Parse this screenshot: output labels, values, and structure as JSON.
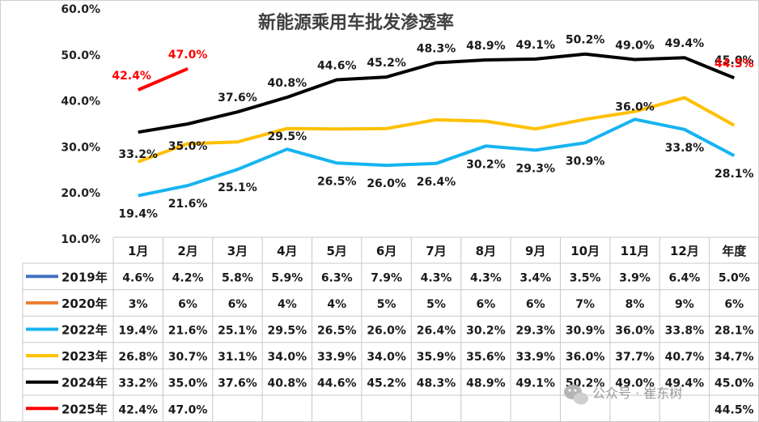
{
  "chart_data": {
    "type": "line",
    "title": "新能源乘用车批发渗透率",
    "categories": [
      "1月",
      "2月",
      "3月",
      "4月",
      "5月",
      "6月",
      "7月",
      "8月",
      "9月",
      "10月",
      "11月",
      "12月",
      "年度"
    ],
    "y_ticks": [
      "10.0%",
      "20.0%",
      "30.0%",
      "40.0%",
      "50.0%",
      "60.0%"
    ],
    "ylim": [
      10,
      60
    ],
    "grid": false,
    "series": [
      {
        "name": "2019年",
        "color": "#4472c4",
        "plotted": false,
        "labels": [
          "4.6%",
          "4.2%",
          "5.8%",
          "5.9%",
          "6.3%",
          "7.9%",
          "4.3%",
          "4.3%",
          "3.4%",
          "3.5%",
          "3.9%",
          "6.4%",
          "5.0%"
        ]
      },
      {
        "name": "2020年",
        "color": "#ed7d31",
        "plotted": false,
        "labels": [
          "3%",
          "6%",
          "6%",
          "4%",
          "4%",
          "5%",
          "5%",
          "6%",
          "6%",
          "7%",
          "8%",
          "9%",
          "6%"
        ]
      },
      {
        "name": "2022年",
        "color": "#16b4f0",
        "plotted": true,
        "show_labels": true,
        "values": [
          19.4,
          21.6,
          25.1,
          29.5,
          26.5,
          26.0,
          26.4,
          30.2,
          29.3,
          30.9,
          36.0,
          33.8,
          28.1
        ],
        "labels": [
          "19.4%",
          "21.6%",
          "25.1%",
          "29.5%",
          "26.5%",
          "26.0%",
          "26.4%",
          "30.2%",
          "29.3%",
          "30.9%",
          "36.0%",
          "33.8%",
          "28.1%"
        ]
      },
      {
        "name": "2023年",
        "color": "#ffc000",
        "plotted": true,
        "show_labels": false,
        "values": [
          26.8,
          30.7,
          31.1,
          34.0,
          33.9,
          34.0,
          35.9,
          35.6,
          33.9,
          36.0,
          37.7,
          40.7,
          34.7
        ],
        "labels": [
          "26.8%",
          "30.7%",
          "31.1%",
          "34.0%",
          "33.9%",
          "34.0%",
          "35.9%",
          "35.6%",
          "33.9%",
          "36.0%",
          "37.7%",
          "40.7%",
          "34.7%"
        ]
      },
      {
        "name": "2024年",
        "color": "#000000",
        "plotted": true,
        "show_labels": true,
        "values": [
          33.2,
          35.0,
          37.6,
          40.8,
          44.6,
          45.2,
          48.3,
          48.9,
          49.1,
          50.2,
          49.0,
          49.4,
          45.0
        ],
        "labels": [
          "33.2%",
          "35.0%",
          "37.6%",
          "40.8%",
          "44.6%",
          "45.2%",
          "48.3%",
          "48.9%",
          "49.1%",
          "50.2%",
          "49.0%",
          "49.4%",
          "45.0%"
        ]
      },
      {
        "name": "2025年",
        "color": "#ff0000",
        "plotted": true,
        "show_labels": true,
        "values": [
          42.4,
          47.0,
          null,
          null,
          null,
          null,
          null,
          null,
          null,
          null,
          null,
          null,
          null
        ],
        "labels": [
          "42.4%",
          "47.0%",
          "",
          "",
          "",
          "",
          "",
          "",
          "",
          "",
          "",
          "",
          "44.5%"
        ],
        "chart_annual_label": "44.5%"
      }
    ]
  },
  "watermark": "公众号 · 崔东树"
}
